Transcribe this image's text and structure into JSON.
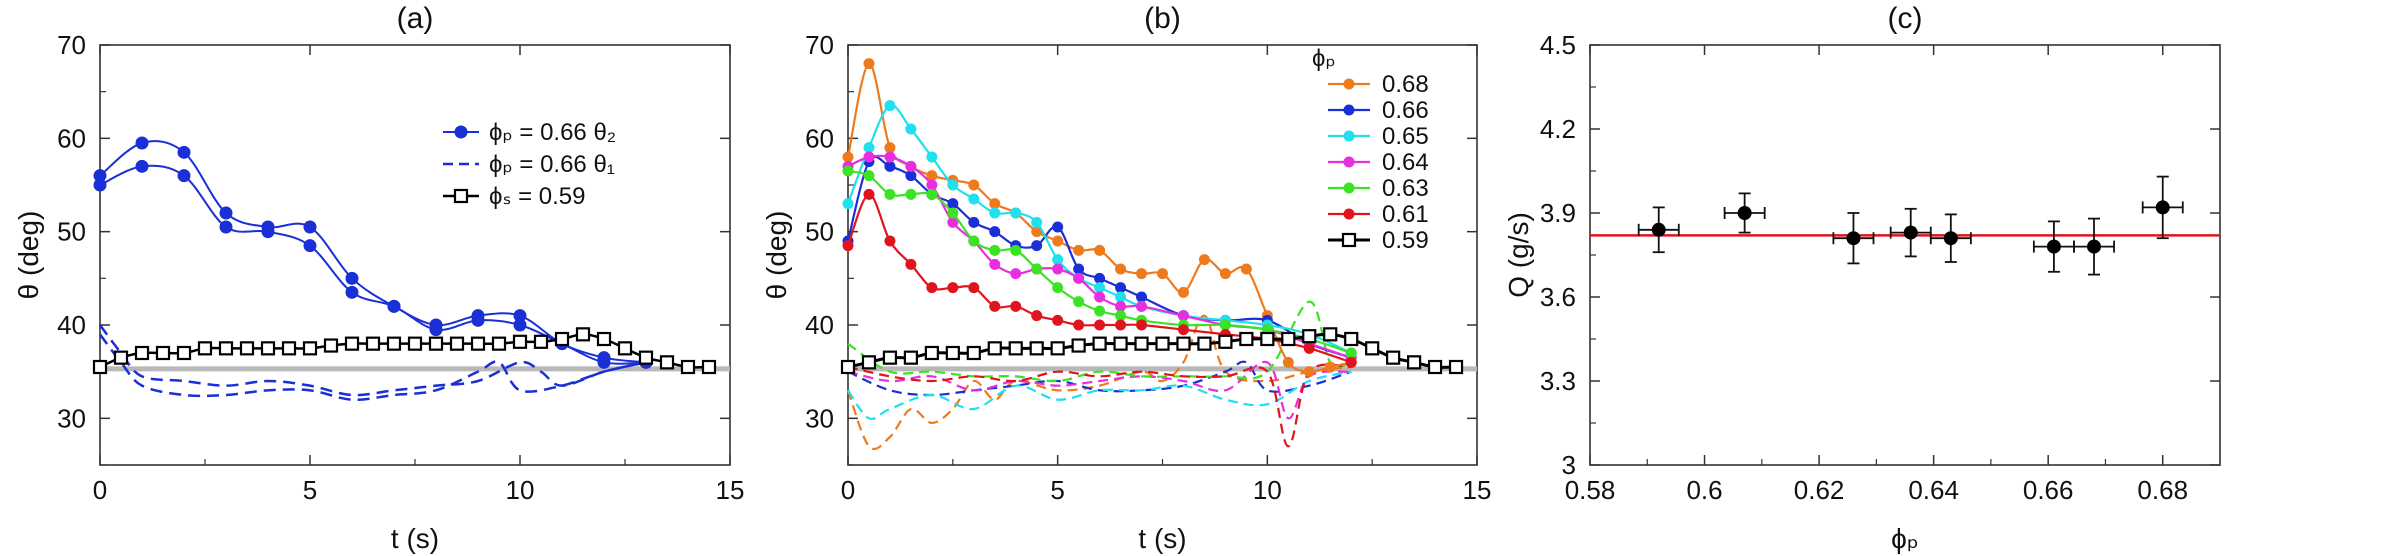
{
  "chart_data": [
    {
      "panel": "(a)",
      "type": "line",
      "title": "(a)",
      "xlabel": "t (s)",
      "ylabel": "θ (deg)",
      "xlim": [
        0,
        15
      ],
      "ylim": [
        25,
        70
      ],
      "xticks": [
        0,
        5,
        10,
        15
      ],
      "yticks": [
        30,
        40,
        50,
        60,
        70
      ],
      "reference_line": 35.3,
      "legend": [
        "ϕₚ = 0.66 θ₂",
        "ϕₚ = 0.66 θ₁",
        "ϕₛ = 0.59"
      ],
      "series": [
        {
          "name": "ϕₚ = 0.66 θ₂ (run 1)",
          "style": "solid-dots",
          "color": "#1a2fd6",
          "x": [
            0,
            1,
            2,
            3,
            4,
            5,
            6,
            7,
            8,
            9,
            10,
            11,
            12,
            13
          ],
          "y": [
            56,
            59.5,
            58.5,
            52,
            50.5,
            50.5,
            45,
            42,
            40,
            41,
            41,
            38,
            36.5,
            36
          ]
        },
        {
          "name": "ϕₚ = 0.66 θ₂ (run 2)",
          "style": "solid-dots",
          "color": "#1a2fd6",
          "x": [
            0,
            1,
            2,
            3,
            4,
            5,
            6,
            7,
            8,
            9,
            10,
            11,
            12,
            13
          ],
          "y": [
            55,
            57,
            56,
            50.5,
            50,
            48.5,
            43.5,
            42,
            39.5,
            40.5,
            40,
            38,
            36,
            36
          ]
        },
        {
          "name": "ϕₚ = 0.66 θ₁ (run 1)",
          "style": "dashed",
          "color": "#1a2fd6",
          "x": [
            0,
            0.5,
            1,
            2,
            3,
            4,
            5,
            6,
            7,
            8,
            9,
            10,
            10.5,
            11,
            12,
            13
          ],
          "y": [
            40,
            37,
            34.5,
            34,
            33.5,
            34,
            33.5,
            32.5,
            33,
            33.5,
            34,
            36,
            35,
            33.5,
            35,
            36
          ]
        },
        {
          "name": "ϕₚ = 0.66 θ₁ (run 2)",
          "style": "dashed",
          "color": "#1a2fd6",
          "x": [
            0,
            0.5,
            1,
            2,
            3,
            4,
            5,
            6,
            7,
            8,
            9,
            9.5,
            10,
            11,
            12,
            13
          ],
          "y": [
            39,
            36,
            33.5,
            32.5,
            32.5,
            33,
            33,
            32,
            32.5,
            33,
            35,
            36,
            33,
            33.5,
            35,
            36
          ]
        },
        {
          "name": "ϕₛ = 0.59",
          "style": "open-squares",
          "color": "#000000",
          "x": [
            0,
            0.5,
            1,
            1.5,
            2,
            2.5,
            3,
            3.5,
            4,
            4.5,
            5,
            5.5,
            6,
            6.5,
            7,
            7.5,
            8,
            8.5,
            9,
            9.5,
            10,
            10.5,
            11,
            11.5,
            12,
            12.5,
            13,
            13.5,
            14,
            14.5
          ],
          "y": [
            35.5,
            36.5,
            37,
            37,
            37,
            37.5,
            37.5,
            37.5,
            37.5,
            37.5,
            37.5,
            37.8,
            38,
            38,
            38,
            38,
            38,
            38,
            38,
            38,
            38.2,
            38.2,
            38.5,
            39,
            38.5,
            37.5,
            36.5,
            36,
            35.5,
            35.5
          ]
        }
      ]
    },
    {
      "panel": "(b)",
      "type": "line",
      "title": "(b)",
      "xlabel": "t (s)",
      "ylabel": "θ (deg)",
      "xlim": [
        0,
        15
      ],
      "ylim": [
        25,
        70
      ],
      "xticks": [
        0,
        5,
        10,
        15
      ],
      "yticks": [
        30,
        40,
        50,
        60,
        70
      ],
      "reference_line": 35.3,
      "legend_title": "ϕₚ",
      "legend": [
        "0.68",
        "0.66",
        "0.65",
        "0.64",
        "0.63",
        "0.61",
        "0.59"
      ],
      "series": [
        {
          "name": "0.68",
          "color": "#ee7a1e",
          "solid_x": [
            0,
            0.5,
            1,
            1.5,
            2,
            2.5,
            3,
            3.5,
            4,
            4.5,
            5,
            5.5,
            6,
            6.5,
            7,
            7.5,
            8,
            8.5,
            9,
            9.5,
            10,
            10.5,
            11,
            11.5,
            12
          ],
          "solid_y": [
            58,
            68,
            59,
            57,
            56,
            55.5,
            55,
            53,
            52,
            50,
            49,
            48,
            48,
            46,
            45.5,
            45.5,
            43.5,
            47,
            45.5,
            46,
            41,
            36,
            35,
            35.5,
            36
          ],
          "dash_x": [
            0,
            0.5,
            1,
            1.5,
            2,
            2.5,
            3,
            3.5,
            4,
            5,
            6,
            7,
            7.5,
            8,
            8.5,
            9,
            10,
            11,
            12
          ],
          "dash_y": [
            33,
            27,
            28,
            31,
            29.5,
            31,
            34,
            32,
            34,
            33,
            33.5,
            35,
            34,
            36,
            41,
            35,
            34,
            35,
            35.5
          ]
        },
        {
          "name": "0.66",
          "color": "#1a2fd6",
          "solid_x": [
            0,
            0.5,
            1,
            1.5,
            2,
            2.5,
            3,
            3.5,
            4,
            4.5,
            5,
            5.5,
            6,
            6.5,
            7,
            8,
            9,
            10,
            11,
            12
          ],
          "solid_y": [
            49,
            57.5,
            57,
            56,
            54,
            53,
            51,
            50,
            48.5,
            48.5,
            50.5,
            46,
            45,
            44,
            43,
            41,
            40.5,
            40.5,
            38,
            36.5
          ],
          "dash_x": [
            0,
            1,
            2,
            3,
            4,
            5,
            6,
            7,
            8,
            9,
            9.5,
            10,
            11,
            12
          ],
          "dash_y": [
            35,
            33,
            32.5,
            33,
            33.5,
            34,
            33,
            33,
            33.5,
            35,
            36,
            33,
            33.5,
            35
          ]
        },
        {
          "name": "0.65",
          "color": "#1fe0ec",
          "solid_x": [
            0,
            0.5,
            1,
            1.5,
            2,
            2.5,
            3,
            3.5,
            4,
            4.5,
            5,
            5.5,
            6,
            6.5,
            7,
            8,
            9,
            10,
            11,
            12
          ],
          "solid_y": [
            53,
            59,
            63.5,
            61,
            58,
            55,
            53.5,
            52,
            52,
            51,
            47,
            45,
            44,
            43,
            42,
            41,
            40.5,
            40,
            39,
            37
          ],
          "dash_x": [
            0,
            0.5,
            1,
            2,
            3,
            4,
            5,
            6,
            7,
            8,
            9,
            10,
            11,
            12
          ],
          "dash_y": [
            33,
            30,
            31,
            32.5,
            31,
            33.5,
            32,
            33,
            33,
            33.5,
            32,
            31.5,
            34,
            35
          ]
        },
        {
          "name": "0.64",
          "color": "#e82fe0",
          "solid_x": [
            0,
            0.5,
            1,
            1.5,
            2,
            2.5,
            3,
            3.5,
            4,
            4.5,
            5,
            5.5,
            6,
            6.5,
            7,
            8,
            9,
            10,
            11,
            12
          ],
          "solid_y": [
            57,
            58,
            58,
            57,
            55,
            51,
            49,
            46.5,
            45.5,
            46,
            46,
            45,
            43,
            42,
            42,
            41,
            40,
            39.5,
            38,
            36.5
          ],
          "dash_x": [
            0,
            1,
            2,
            3,
            4,
            5,
            6,
            7,
            8,
            9,
            10,
            10.5,
            11,
            12
          ],
          "dash_y": [
            35,
            34,
            34.5,
            33,
            34,
            33.5,
            34,
            34.5,
            34,
            33,
            36,
            30,
            34.5,
            35
          ]
        },
        {
          "name": "0.63",
          "color": "#3be324",
          "solid_x": [
            0,
            0.5,
            1,
            1.5,
            2,
            2.5,
            3,
            3.5,
            4,
            4.5,
            5,
            5.5,
            6,
            6.5,
            7,
            8,
            9,
            10,
            11,
            12
          ],
          "solid_y": [
            56.5,
            56,
            54,
            54,
            54,
            52,
            49,
            48,
            48,
            46,
            44,
            42.5,
            41.5,
            41,
            40.5,
            40,
            40,
            39.5,
            38.5,
            37
          ],
          "dash_x": [
            0,
            1,
            2,
            3,
            4,
            5,
            6,
            7,
            8,
            9,
            10,
            11,
            11.5,
            12
          ],
          "dash_y": [
            38,
            35,
            35,
            34.5,
            34.5,
            34,
            35,
            34.5,
            34.5,
            34.5,
            35,
            42.5,
            36,
            36
          ]
        },
        {
          "name": "0.61",
          "color": "#e0141e",
          "solid_x": [
            0,
            0.5,
            1,
            1.5,
            2,
            2.5,
            3,
            3.5,
            4,
            4.5,
            5,
            5.5,
            6,
            6.5,
            7,
            8,
            9,
            10,
            11,
            12
          ],
          "solid_y": [
            48.5,
            54,
            49,
            46.5,
            44,
            44,
            44,
            42,
            42,
            41,
            40.5,
            40,
            40,
            40,
            40,
            39.5,
            39,
            38.5,
            37.5,
            36
          ],
          "dash_x": [
            0,
            1,
            2,
            3,
            4,
            5,
            6,
            7,
            8,
            9,
            10,
            10.5,
            11,
            12
          ],
          "dash_y": [
            35.5,
            34.5,
            34,
            34.5,
            34,
            35,
            34.5,
            35,
            34.5,
            34.5,
            35,
            27,
            35,
            35.5
          ]
        },
        {
          "name": "0.59",
          "color": "#000000",
          "style": "open-squares",
          "solid_x": [
            0,
            0.5,
            1,
            1.5,
            2,
            2.5,
            3,
            3.5,
            4,
            4.5,
            5,
            5.5,
            6,
            6.5,
            7,
            7.5,
            8,
            8.5,
            9,
            9.5,
            10,
            10.5,
            11,
            11.5,
            12,
            12.5,
            13,
            13.5,
            14,
            14.5
          ],
          "solid_y": [
            35.5,
            36,
            36.5,
            36.5,
            37,
            37,
            37,
            37.5,
            37.5,
            37.5,
            37.5,
            37.8,
            38,
            38,
            38,
            38,
            38,
            38,
            38.2,
            38.5,
            38.5,
            38.5,
            38.8,
            39,
            38.5,
            37.5,
            36.5,
            36,
            35.5,
            35.5
          ]
        }
      ]
    },
    {
      "panel": "(c)",
      "type": "scatter",
      "title": "(c)",
      "xlabel": "ϕₚ",
      "ylabel": "Q (g/s)",
      "xlim": [
        0.58,
        0.69
      ],
      "ylim": [
        3.0,
        4.5
      ],
      "xticks": [
        0.58,
        0.6,
        0.62,
        0.64,
        0.66,
        0.68
      ],
      "xtick_labels": [
        "0.58",
        "0.6",
        "0.62",
        "0.64",
        "0.66",
        "0.68"
      ],
      "yticks": [
        3.0,
        3.3,
        3.6,
        3.9,
        4.2,
        4.5
      ],
      "ytick_labels": [
        "3",
        "3.3",
        "3.6",
        "3.9",
        "4.2",
        "4.5"
      ],
      "reference_line": 3.82,
      "reference_color": "#e0141e",
      "points": [
        {
          "x": 0.592,
          "y": 3.84,
          "xerr": 0.0035,
          "yerr": 0.08
        },
        {
          "x": 0.607,
          "y": 3.9,
          "xerr": 0.0035,
          "yerr": 0.07
        },
        {
          "x": 0.626,
          "y": 3.81,
          "xerr": 0.0035,
          "yerr": 0.09
        },
        {
          "x": 0.636,
          "y": 3.83,
          "xerr": 0.0035,
          "yerr": 0.085
        },
        {
          "x": 0.643,
          "y": 3.81,
          "xerr": 0.0035,
          "yerr": 0.085
        },
        {
          "x": 0.661,
          "y": 3.78,
          "xerr": 0.0035,
          "yerr": 0.09
        },
        {
          "x": 0.668,
          "y": 3.78,
          "xerr": 0.0035,
          "yerr": 0.1
        },
        {
          "x": 0.68,
          "y": 3.92,
          "xerr": 0.0035,
          "yerr": 0.11
        }
      ]
    }
  ]
}
